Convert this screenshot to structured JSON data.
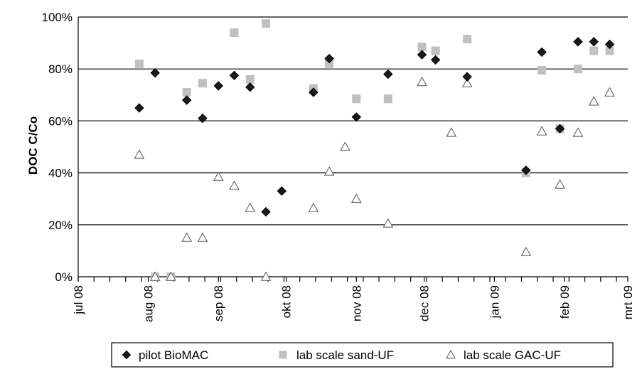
{
  "chart_data": {
    "type": "scatter",
    "title": "",
    "xlabel": "",
    "ylabel": "DOC C/Co",
    "ylim": [
      0,
      100
    ],
    "y_unit": "%",
    "y_ticks": [
      "0%",
      "20%",
      "40%",
      "60%",
      "80%",
      "100%"
    ],
    "x_range": [
      "2008-07-01",
      "2009-03-01"
    ],
    "x_ticks": [
      {
        "label": "jul 08",
        "date": "2008-07-01"
      },
      {
        "label": "aug 08",
        "date": "2008-08-01"
      },
      {
        "label": "sep 08",
        "date": "2008-09-01"
      },
      {
        "label": "okt 08",
        "date": "2008-10-01"
      },
      {
        "label": "nov 08",
        "date": "2008-11-01"
      },
      {
        "label": "dec 08",
        "date": "2008-12-01"
      },
      {
        "label": "jan 09",
        "date": "2009-01-01"
      },
      {
        "label": "feb 09",
        "date": "2009-02-01"
      },
      {
        "label": "mrt 09",
        "date": "2009-03-01"
      }
    ],
    "grid": "horizontal",
    "legend_position": "bottom",
    "series": [
      {
        "name": "pilot BioMAC",
        "marker": "diamond",
        "color": "#1a1a1a",
        "points": [
          {
            "x": "2008-07-28",
            "y": 65
          },
          {
            "x": "2008-08-04",
            "y": 78.5
          },
          {
            "x": "2008-08-18",
            "y": 68
          },
          {
            "x": "2008-08-25",
            "y": 61
          },
          {
            "x": "2008-09-01",
            "y": 73.5
          },
          {
            "x": "2008-09-08",
            "y": 77.5
          },
          {
            "x": "2008-09-15",
            "y": 73
          },
          {
            "x": "2008-09-22",
            "y": 25
          },
          {
            "x": "2008-09-29",
            "y": 33
          },
          {
            "x": "2008-10-13",
            "y": 71
          },
          {
            "x": "2008-10-20",
            "y": 84
          },
          {
            "x": "2008-11-01",
            "y": 61.5
          },
          {
            "x": "2008-11-15",
            "y": 78
          },
          {
            "x": "2008-11-30",
            "y": 85.5
          },
          {
            "x": "2008-12-06",
            "y": 83.5
          },
          {
            "x": "2008-12-20",
            "y": 77
          },
          {
            "x": "2009-01-15",
            "y": 41
          },
          {
            "x": "2009-01-22",
            "y": 86.5
          },
          {
            "x": "2009-01-30",
            "y": 57
          },
          {
            "x": "2009-02-07",
            "y": 90.5
          },
          {
            "x": "2009-02-14",
            "y": 90.5
          },
          {
            "x": "2009-02-21",
            "y": 89.5
          }
        ]
      },
      {
        "name": "lab scale sand-UF",
        "marker": "square",
        "color": "#c0c0c0",
        "points": [
          {
            "x": "2008-07-28",
            "y": 82
          },
          {
            "x": "2008-08-04",
            "y": 0
          },
          {
            "x": "2008-08-11",
            "y": 0
          },
          {
            "x": "2008-08-18",
            "y": 71
          },
          {
            "x": "2008-08-25",
            "y": 74.5
          },
          {
            "x": "2008-09-08",
            "y": 94
          },
          {
            "x": "2008-09-15",
            "y": 76
          },
          {
            "x": "2008-09-22",
            "y": 97.5
          },
          {
            "x": "2008-10-13",
            "y": 72.5
          },
          {
            "x": "2008-10-20",
            "y": 82
          },
          {
            "x": "2008-11-01",
            "y": 68.5
          },
          {
            "x": "2008-11-15",
            "y": 68.5
          },
          {
            "x": "2008-11-30",
            "y": 88.5
          },
          {
            "x": "2008-12-06",
            "y": 87
          },
          {
            "x": "2008-12-20",
            "y": 91.5
          },
          {
            "x": "2009-01-15",
            "y": 40
          },
          {
            "x": "2009-01-22",
            "y": 79.5
          },
          {
            "x": "2009-01-30",
            "y": 57
          },
          {
            "x": "2009-02-07",
            "y": 80
          },
          {
            "x": "2009-02-14",
            "y": 87
          },
          {
            "x": "2009-02-21",
            "y": 87
          }
        ]
      },
      {
        "name": "lab scale GAC-UF",
        "marker": "triangle",
        "color": "#555555",
        "points": [
          {
            "x": "2008-07-28",
            "y": 47
          },
          {
            "x": "2008-08-04",
            "y": 0
          },
          {
            "x": "2008-08-11",
            "y": 0
          },
          {
            "x": "2008-08-18",
            "y": 15
          },
          {
            "x": "2008-08-25",
            "y": 15
          },
          {
            "x": "2008-09-01",
            "y": 38.5
          },
          {
            "x": "2008-09-08",
            "y": 35
          },
          {
            "x": "2008-09-15",
            "y": 26.5
          },
          {
            "x": "2008-09-22",
            "y": 0
          },
          {
            "x": "2008-10-13",
            "y": 26.5
          },
          {
            "x": "2008-10-20",
            "y": 40.5
          },
          {
            "x": "2008-10-27",
            "y": 50
          },
          {
            "x": "2008-11-01",
            "y": 30
          },
          {
            "x": "2008-11-15",
            "y": 20.5
          },
          {
            "x": "2008-11-30",
            "y": 75
          },
          {
            "x": "2008-12-13",
            "y": 55.5
          },
          {
            "x": "2008-12-20",
            "y": 74.5
          },
          {
            "x": "2009-01-15",
            "y": 9.5
          },
          {
            "x": "2009-01-22",
            "y": 56
          },
          {
            "x": "2009-01-30",
            "y": 35.5
          },
          {
            "x": "2009-02-07",
            "y": 55.5
          },
          {
            "x": "2009-02-14",
            "y": 67.5
          },
          {
            "x": "2009-02-21",
            "y": 71
          }
        ]
      }
    ]
  }
}
